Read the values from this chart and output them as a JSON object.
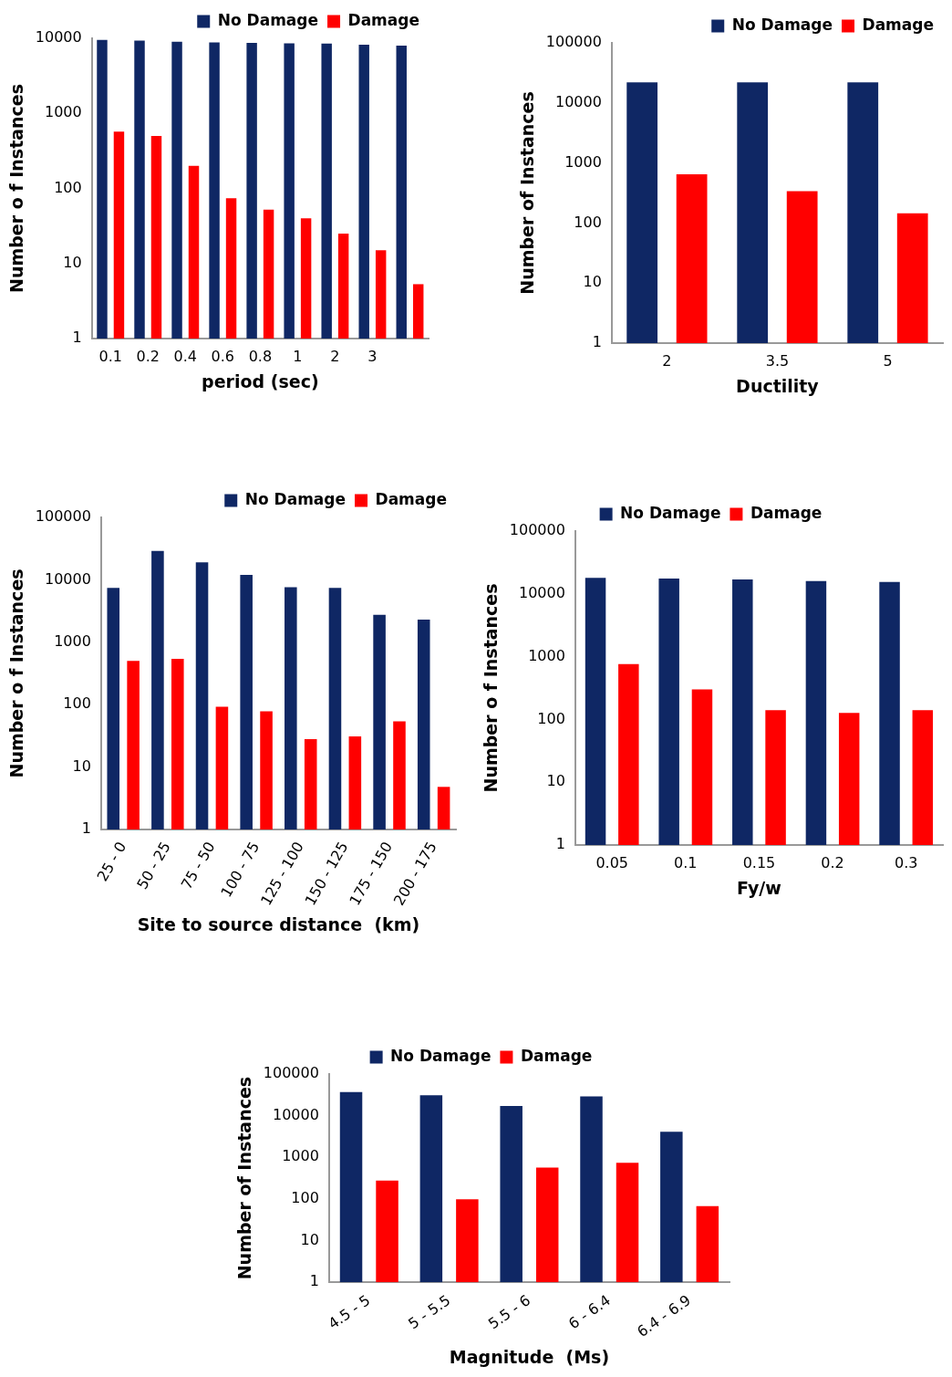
{
  "chart_data": [
    {
      "type": "bar",
      "xlabel": "period (sec)",
      "ylabel": "Number o f Instances",
      "categories": [
        "0.1",
        "0.2",
        "0.4",
        "0.6",
        "0.8",
        "1",
        "2",
        "3",
        null
      ],
      "log": true,
      "ylim": [
        1,
        10000
      ],
      "yticks": [
        1,
        10,
        100,
        1000,
        10000
      ],
      "legend": "top right",
      "series": [
        {
          "name": "No Damage",
          "color": "#0f2764",
          "values": [
            9500,
            9300,
            9000,
            8800,
            8700,
            8600,
            8500,
            8200,
            8000
          ]
        },
        {
          "name": "Damage",
          "color": "#ff0000",
          "values": [
            570,
            500,
            200,
            74,
            52,
            40,
            25,
            15,
            5.3
          ]
        }
      ]
    },
    {
      "type": "bar",
      "xlabel": "Ductility",
      "ylabel": "Number of Instances",
      "categories": [
        "2",
        "3.5",
        "5"
      ],
      "log": true,
      "ylim": [
        1,
        100000
      ],
      "yticks": [
        1,
        10,
        100,
        1000,
        10000,
        100000
      ],
      "legend": "top right",
      "series": [
        {
          "name": "No Damage",
          "color": "#0f2764",
          "values": [
            22000,
            22000,
            22000
          ]
        },
        {
          "name": "Damage",
          "color": "#ff0000",
          "values": [
            650,
            340,
            145
          ]
        }
      ]
    },
    {
      "type": "bar",
      "xlabel": "Site to source distance  (km)",
      "ylabel": "Number o f Instances",
      "categories": [
        "25 - 0",
        "50 - 25",
        "75 - 50",
        "100 - 75",
        "125 - 100",
        "150 - 125",
        "175 - 150",
        "200 - 175"
      ],
      "log": true,
      "ylim": [
        1,
        100000
      ],
      "yticks": [
        1,
        10,
        100,
        1000,
        10000,
        100000
      ],
      "legend": "top right",
      "series": [
        {
          "name": "No Damage",
          "color": "#0f2764",
          "values": [
            7400,
            29000,
            19000,
            12000,
            7600,
            7400,
            2750,
            2300
          ]
        },
        {
          "name": "Damage",
          "color": "#ff0000",
          "values": [
            500,
            540,
            92,
            78,
            28,
            31,
            54,
            4.8
          ]
        }
      ]
    },
    {
      "type": "bar",
      "xlabel": "Fy/w",
      "ylabel": "Number o f Instances",
      "categories": [
        "0.05",
        "0.1",
        "0.15",
        "0.2",
        "0.3"
      ],
      "log": true,
      "ylim": [
        1,
        100000
      ],
      "yticks": [
        1,
        10,
        100,
        1000,
        10000,
        100000
      ],
      "legend": "top",
      "series": [
        {
          "name": "No Damage",
          "color": "#0f2764",
          "values": [
            18000,
            17500,
            17000,
            16000,
            15500
          ]
        },
        {
          "name": "Damage",
          "color": "#ff0000",
          "values": [
            760,
            300,
            140,
            127,
            140
          ]
        }
      ]
    },
    {
      "type": "bar",
      "xlabel": "Magnitude  (Ms)",
      "ylabel": "Number of Instances",
      "categories": [
        "4.5 - 5",
        "5 - 5.5",
        "5.5 - 6",
        "6 - 6.4",
        "6.4 - 6.9"
      ],
      "log": true,
      "ylim": [
        1,
        100000
      ],
      "yticks": [
        1,
        10,
        100,
        1000,
        10000,
        100000
      ],
      "legend": "top",
      "series": [
        {
          "name": "No Damage",
          "color": "#0f2764",
          "values": [
            37000,
            31000,
            17000,
            29000,
            4100
          ]
        },
        {
          "name": "Damage",
          "color": "#ff0000",
          "values": [
            275,
            98,
            570,
            740,
            67
          ]
        }
      ]
    }
  ]
}
